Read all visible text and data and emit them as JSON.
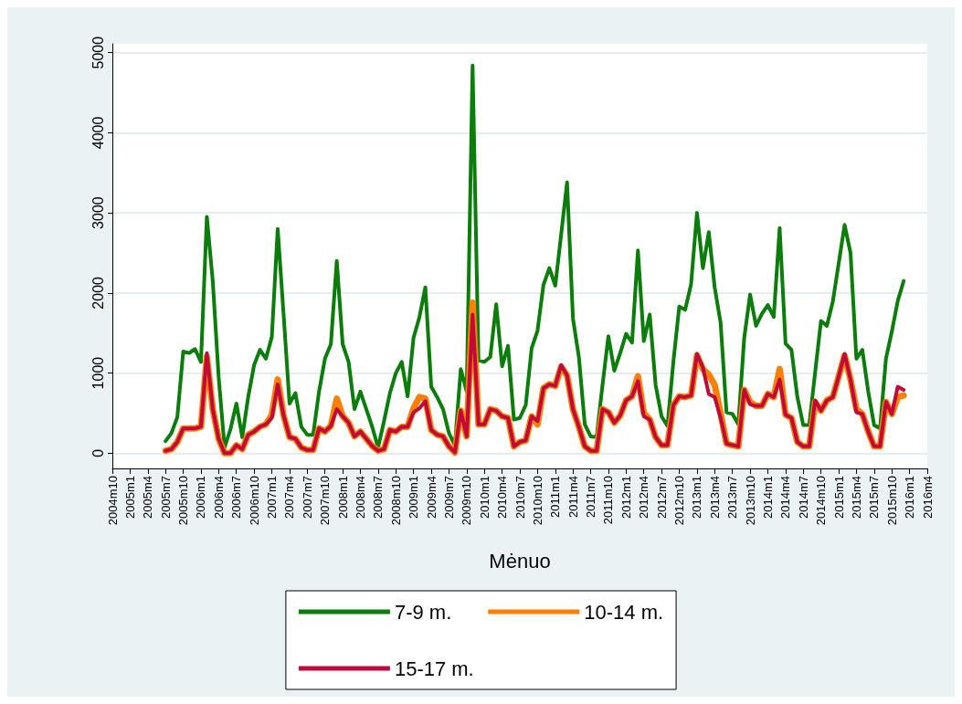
{
  "chart_data": {
    "type": "line",
    "xlabel": "Mėnuo",
    "categories": [
      "2004m10",
      null,
      null,
      "2005m1",
      null,
      null,
      "2005m4",
      null,
      null,
      "2005m7",
      null,
      null,
      "2005m10",
      null,
      null,
      "2006m1",
      null,
      null,
      "2006m4",
      null,
      null,
      "2006m7",
      null,
      null,
      "2006m10",
      null,
      null,
      "2007m1",
      null,
      null,
      "2007m4",
      null,
      null,
      "2007m7",
      null,
      null,
      "2007m10",
      null,
      null,
      "2008m1",
      null,
      null,
      "2008m4",
      null,
      null,
      "2008m7",
      null,
      null,
      "2008m10",
      null,
      null,
      "2009m1",
      null,
      null,
      "2009m4",
      null,
      null,
      "2009m7",
      null,
      null,
      "2009m10",
      null,
      null,
      "2010m1",
      null,
      null,
      "2010m4",
      null,
      null,
      "2010m7",
      null,
      null,
      "2010m10",
      null,
      null,
      "2011m1",
      null,
      null,
      "2011m4",
      null,
      null,
      "2011m7",
      null,
      null,
      "2011m10",
      null,
      null,
      "2012m1",
      null,
      null,
      "2012m4",
      null,
      null,
      "2012m7",
      null,
      null,
      "2012m10",
      null,
      null,
      "2013m1",
      null,
      null,
      "2013m4",
      null,
      null,
      "2013m7",
      null,
      null,
      "2013m10",
      null,
      null,
      "2014m1",
      null,
      null,
      "2014m4",
      null,
      null,
      "2014m7",
      null,
      null,
      "2014m10",
      null,
      null,
      "2015m1",
      null,
      null,
      "2015m4",
      null,
      null,
      "2015m7",
      null,
      null,
      "2015m10",
      null,
      null,
      "2016m1",
      null,
      null,
      "2016m4"
    ],
    "series": [
      {
        "name": "7-9 m.",
        "color": "#0a7d0a",
        "values": [
          null,
          null,
          null,
          null,
          null,
          null,
          null,
          null,
          null,
          150,
          250,
          450,
          1270,
          1250,
          1300,
          1140,
          2950,
          2150,
          950,
          70,
          300,
          620,
          200,
          700,
          1100,
          1290,
          1180,
          1450,
          2800,
          1730,
          620,
          750,
          330,
          230,
          230,
          770,
          1180,
          1360,
          2400,
          1360,
          1140,
          550,
          770,
          550,
          330,
          70,
          400,
          750,
          1000,
          1140,
          710,
          1440,
          1700,
          2070,
          830,
          700,
          550,
          250,
          100,
          1050,
          770,
          4840,
          1160,
          1140,
          1200,
          1860,
          1085,
          1340,
          420,
          440,
          600,
          1310,
          1530,
          2100,
          2310,
          2090,
          2730,
          3380,
          1680,
          1200,
          360,
          210,
          200,
          850,
          1460,
          1030,
          1250,
          1490,
          1380,
          2530,
          1400,
          1730,
          850,
          460,
          340,
          1140,
          1830,
          1790,
          2110,
          3000,
          2310,
          2760,
          2070,
          1630,
          510,
          490,
          360,
          1440,
          1980,
          1590,
          1740,
          1850,
          1700,
          2810,
          1370,
          1290,
          700,
          350,
          350,
          1000,
          1650,
          1590,
          1890,
          2370,
          2850,
          2500,
          1180,
          1290,
          770,
          350,
          310,
          1180,
          1520,
          1900,
          2150,
          null,
          null,
          null,
          null
        ]
      },
      {
        "name": "10-14 m.",
        "color": "#ff7f00",
        "values": [
          null,
          null,
          null,
          null,
          null,
          null,
          null,
          null,
          null,
          30,
          50,
          140,
          310,
          310,
          310,
          330,
          1200,
          550,
          180,
          0,
          0,
          100,
          50,
          230,
          270,
          330,
          360,
          480,
          920,
          470,
          200,
          180,
          70,
          40,
          40,
          310,
          270,
          340,
          680,
          460,
          380,
          210,
          270,
          180,
          90,
          30,
          50,
          290,
          270,
          330,
          330,
          560,
          700,
          680,
          290,
          230,
          210,
          85,
          10,
          530,
          210,
          1880,
          360,
          360,
          550,
          530,
          460,
          440,
          85,
          140,
          160,
          460,
          360,
          810,
          860,
          840,
          1080,
          970,
          550,
          330,
          85,
          30,
          30,
          550,
          510,
          380,
          470,
          660,
          710,
          960,
          500,
          420,
          200,
          100,
          100,
          600,
          710,
          700,
          720,
          1220,
          1050,
          980,
          850,
          500,
          120,
          100,
          85,
          790,
          640,
          590,
          590,
          740,
          700,
          1050,
          480,
          440,
          140,
          85,
          85,
          640,
          530,
          660,
          700,
          960,
          1220,
          920,
          550,
          490,
          270,
          85,
          85,
          640,
          490,
          700,
          720,
          null,
          null,
          null,
          null
        ]
      },
      {
        "name": "15-17 m.",
        "color": "#c00a3a",
        "values": [
          null,
          null,
          null,
          null,
          null,
          null,
          null,
          null,
          null,
          30,
          50,
          140,
          310,
          310,
          310,
          330,
          1250,
          550,
          180,
          0,
          0,
          100,
          50,
          230,
          270,
          330,
          360,
          440,
          860,
          470,
          200,
          180,
          70,
          40,
          40,
          310,
          270,
          340,
          550,
          460,
          380,
          210,
          270,
          180,
          90,
          30,
          50,
          290,
          270,
          330,
          330,
          510,
          560,
          650,
          290,
          230,
          210,
          85,
          10,
          530,
          210,
          1730,
          360,
          360,
          550,
          530,
          460,
          440,
          85,
          140,
          160,
          460,
          400,
          810,
          860,
          840,
          1100,
          970,
          550,
          330,
          85,
          30,
          30,
          550,
          510,
          380,
          470,
          660,
          710,
          900,
          460,
          420,
          200,
          100,
          100,
          600,
          710,
          700,
          720,
          1240,
          1070,
          740,
          700,
          440,
          120,
          100,
          85,
          790,
          610,
          590,
          590,
          740,
          700,
          920,
          480,
          440,
          140,
          85,
          85,
          660,
          530,
          660,
          700,
          960,
          1240,
          920,
          510,
          490,
          270,
          85,
          85,
          640,
          490,
          830,
          790,
          null,
          null,
          null,
          null
        ]
      }
    ],
    "ylim": [
      -190,
      5110
    ],
    "yticks": [
      0,
      1000,
      2000,
      3000,
      4000,
      5000
    ],
    "grid": "y",
    "legend": "bottom"
  }
}
